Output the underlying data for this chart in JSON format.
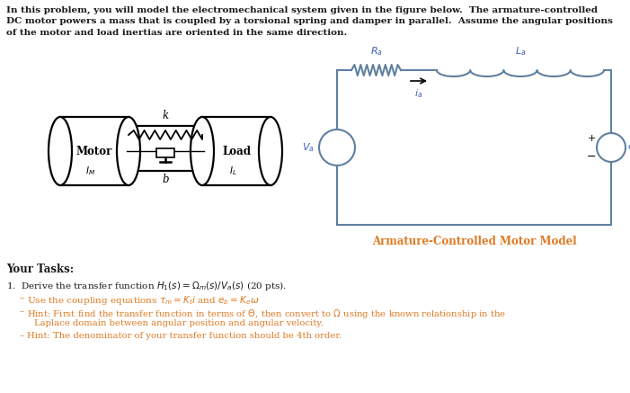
{
  "intro_lines": [
    "In this problem, you will model the electromechanical system given in the figure below.  The armature-controlled",
    "DC motor powers a mass that is coupled by a torsional spring and damper in parallel.  Assume the angular positions",
    "of the motor and load inertias are oriented in the same direction."
  ],
  "caption": "Armature-Controlled Motor Model",
  "caption_color": "#e07820",
  "your_tasks_label": "Your Tasks:",
  "item1_prefix": "1.  Derive the transfer function ",
  "item1_suffix": " (20 pts).",
  "bullet1": "Use the coupling equations ",
  "bullet2_prefix": "Hint: First find the transfer function in terms of Θ, then convert to Ω using the known relationship in the",
  "bullet2_cont": "Laplace domain between angular position and angular velocity.",
  "bullet3": "Hint: The denominator of your transfer function should be 4th order.",
  "dash_color": "#e07820",
  "hint_text_color": "#e07820",
  "bg_color": "#ffffff",
  "circuit_wire_color": "#6080a0",
  "circuit_label_color": "#4060c0",
  "mech_color": "#000000",
  "text_black": "#1a1a1a"
}
